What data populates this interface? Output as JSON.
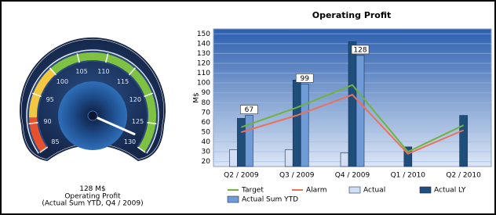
{
  "chart_data": [
    {
      "type": "gauge",
      "value": 128,
      "unit": "M$",
      "label": "Operating Profit",
      "sublabel": "(Actual Sum YTD, Q4 / 2009)",
      "ylim": [
        85,
        130
      ],
      "yticks": [
        85,
        90,
        95,
        100,
        105,
        110,
        115,
        120,
        125,
        130
      ],
      "bands": [
        {
          "from": 85,
          "to": 91,
          "color": "#e8512d"
        },
        {
          "from": 91,
          "to": 100,
          "color": "#f3c742"
        },
        {
          "from": 100,
          "to": 130,
          "color": "#7fc241"
        }
      ],
      "needle_color": "#ffffff"
    },
    {
      "type": "combo",
      "title": "Operating Profit",
      "ylabel": "M$",
      "categories": [
        "Q2 / 2009",
        "Q3 / 2009",
        "Q4 / 2009",
        "Q1 / 2010",
        "Q2 / 2010"
      ],
      "ylim": [
        15,
        155
      ],
      "yticks": [
        20,
        30,
        40,
        50,
        60,
        70,
        80,
        90,
        100,
        110,
        120,
        130,
        140,
        150
      ],
      "grid": true,
      "series": [
        {
          "name": "Target",
          "kind": "line",
          "color": "#6fb33f",
          "values": [
            55,
            75,
            98,
            30,
            57
          ]
        },
        {
          "name": "Alarm",
          "kind": "line",
          "color": "#e8735a",
          "values": [
            50,
            67,
            88,
            28,
            52
          ]
        },
        {
          "name": "Actual",
          "kind": "bar",
          "color": "#d3def2",
          "values": [
            32,
            32,
            29,
            null,
            null
          ]
        },
        {
          "name": "Actual LY",
          "kind": "bar",
          "color": "#1f4e7a",
          "values": [
            64,
            103,
            142,
            35,
            67
          ]
        },
        {
          "name": "Actual Sum YTD",
          "kind": "bar",
          "color": "#6f9bd6",
          "values": [
            67,
            99,
            128,
            null,
            null
          ],
          "labels": true
        }
      ]
    }
  ]
}
